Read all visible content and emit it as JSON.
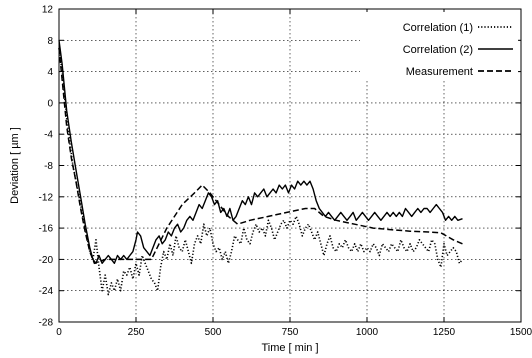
{
  "chart_data": {
    "type": "line",
    "title": "",
    "xlabel": "Time  [ min ]",
    "ylabel": "Deviation  [ µm ]",
    "xlim": [
      0,
      1500
    ],
    "ylim": [
      -28,
      12
    ],
    "x_ticks": [
      0,
      250,
      500,
      750,
      1000,
      1250,
      1500
    ],
    "y_ticks": [
      12,
      8,
      4,
      0,
      -4,
      -8,
      -12,
      -16,
      -20,
      -24,
      -28
    ],
    "grid": true,
    "legend_position": "top-right",
    "series": [
      {
        "name": "Correlation (1)",
        "style": "dotted",
        "color": "#000000",
        "points": [
          [
            0,
            7
          ],
          [
            10,
            4
          ],
          [
            25,
            -2
          ],
          [
            45,
            -8
          ],
          [
            60,
            -11
          ],
          [
            75,
            -14
          ],
          [
            90,
            -17
          ],
          [
            100,
            -19
          ],
          [
            110,
            -20
          ],
          [
            120,
            -17.5
          ],
          [
            130,
            -21
          ],
          [
            140,
            -24
          ],
          [
            150,
            -22
          ],
          [
            160,
            -24.5
          ],
          [
            170,
            -23
          ],
          [
            180,
            -24
          ],
          [
            190,
            -22.5
          ],
          [
            200,
            -24
          ],
          [
            210,
            -21.5
          ],
          [
            220,
            -22
          ],
          [
            230,
            -21
          ],
          [
            240,
            -22.5
          ],
          [
            250,
            -20.5
          ],
          [
            260,
            -22
          ],
          [
            270,
            -19.5
          ],
          [
            280,
            -20.5
          ],
          [
            290,
            -21.5
          ],
          [
            300,
            -22.5
          ],
          [
            310,
            -23
          ],
          [
            320,
            -24
          ],
          [
            330,
            -21
          ],
          [
            340,
            -19
          ],
          [
            350,
            -20
          ],
          [
            360,
            -18
          ],
          [
            370,
            -19.5
          ],
          [
            380,
            -17
          ],
          [
            390,
            -18.5
          ],
          [
            400,
            -19
          ],
          [
            410,
            -17.5
          ],
          [
            420,
            -19
          ],
          [
            430,
            -20.5
          ],
          [
            440,
            -18
          ],
          [
            450,
            -17
          ],
          [
            460,
            -18
          ],
          [
            470,
            -15.5
          ],
          [
            480,
            -17
          ],
          [
            490,
            -16
          ],
          [
            500,
            -18
          ],
          [
            510,
            -19
          ],
          [
            520,
            -18.5
          ],
          [
            530,
            -20
          ],
          [
            540,
            -19
          ],
          [
            550,
            -20.5
          ],
          [
            560,
            -19
          ],
          [
            570,
            -17
          ],
          [
            580,
            -17.5
          ],
          [
            590,
            -18
          ],
          [
            600,
            -16
          ],
          [
            610,
            -17.5
          ],
          [
            620,
            -18
          ],
          [
            630,
            -16.5
          ],
          [
            640,
            -15.5
          ],
          [
            650,
            -16.5
          ],
          [
            660,
            -16
          ],
          [
            670,
            -17
          ],
          [
            680,
            -15
          ],
          [
            690,
            -16
          ],
          [
            700,
            -17.5
          ],
          [
            710,
            -16.5
          ],
          [
            720,
            -15.5
          ],
          [
            730,
            -15
          ],
          [
            740,
            -16
          ],
          [
            750,
            -15
          ],
          [
            760,
            -15.5
          ],
          [
            770,
            -14.5
          ],
          [
            780,
            -15.5
          ],
          [
            790,
            -17
          ],
          [
            800,
            -16
          ],
          [
            810,
            -15.5
          ],
          [
            820,
            -16.5
          ],
          [
            830,
            -17.5
          ],
          [
            840,
            -16.5
          ],
          [
            850,
            -18
          ],
          [
            860,
            -19.5
          ],
          [
            870,
            -18
          ],
          [
            880,
            -17
          ],
          [
            890,
            -18.5
          ],
          [
            900,
            -19
          ],
          [
            910,
            -18
          ],
          [
            920,
            -18.5
          ],
          [
            930,
            -17.5
          ],
          [
            940,
            -18.5
          ],
          [
            950,
            -19
          ],
          [
            960,
            -18
          ],
          [
            970,
            -19
          ],
          [
            980,
            -18
          ],
          [
            990,
            -19
          ],
          [
            1000,
            -18.5
          ],
          [
            1010,
            -19
          ],
          [
            1020,
            -18
          ],
          [
            1030,
            -18.5
          ],
          [
            1040,
            -19.5
          ],
          [
            1050,
            -18
          ],
          [
            1060,
            -18.5
          ],
          [
            1070,
            -19
          ],
          [
            1080,
            -18
          ],
          [
            1090,
            -18.5
          ],
          [
            1100,
            -19
          ],
          [
            1110,
            -17.5
          ],
          [
            1120,
            -18.5
          ],
          [
            1130,
            -19
          ],
          [
            1140,
            -18
          ],
          [
            1150,
            -19
          ],
          [
            1160,
            -18.5
          ],
          [
            1170,
            -17.5
          ],
          [
            1180,
            -18
          ],
          [
            1190,
            -18.5
          ],
          [
            1200,
            -19
          ],
          [
            1210,
            -17.5
          ],
          [
            1220,
            -18
          ],
          [
            1230,
            -20
          ],
          [
            1240,
            -21
          ],
          [
            1250,
            -18
          ],
          [
            1260,
            -19.5
          ],
          [
            1270,
            -19
          ],
          [
            1280,
            -18.5
          ],
          [
            1290,
            -19
          ],
          [
            1300,
            -20.5
          ],
          [
            1310,
            -20
          ]
        ]
      },
      {
        "name": "Correlation (2)",
        "style": "solid",
        "color": "#000000",
        "points": [
          [
            0,
            8
          ],
          [
            10,
            5
          ],
          [
            25,
            -1
          ],
          [
            40,
            -5
          ],
          [
            55,
            -8.5
          ],
          [
            70,
            -12
          ],
          [
            85,
            -15.5
          ],
          [
            100,
            -18.5
          ],
          [
            110,
            -20
          ],
          [
            120,
            -20.5
          ],
          [
            130,
            -19.5
          ],
          [
            140,
            -20.5
          ],
          [
            150,
            -20
          ],
          [
            160,
            -19.5
          ],
          [
            170,
            -20
          ],
          [
            180,
            -20.5
          ],
          [
            190,
            -19.5
          ],
          [
            200,
            -20
          ],
          [
            210,
            -19.5
          ],
          [
            220,
            -20
          ],
          [
            230,
            -19.5
          ],
          [
            240,
            -19
          ],
          [
            250,
            -17.5
          ],
          [
            255,
            -16.5
          ],
          [
            265,
            -17
          ],
          [
            275,
            -18.5
          ],
          [
            285,
            -19
          ],
          [
            295,
            -19.5
          ],
          [
            305,
            -18.5
          ],
          [
            315,
            -17.5
          ],
          [
            325,
            -17
          ],
          [
            335,
            -18
          ],
          [
            345,
            -17.5
          ],
          [
            355,
            -16.5
          ],
          [
            365,
            -17
          ],
          [
            375,
            -16
          ],
          [
            385,
            -15.5
          ],
          [
            395,
            -16.5
          ],
          [
            405,
            -16
          ],
          [
            415,
            -15
          ],
          [
            425,
            -14.5
          ],
          [
            435,
            -15
          ],
          [
            445,
            -14
          ],
          [
            455,
            -13
          ],
          [
            465,
            -13.5
          ],
          [
            475,
            -12.5
          ],
          [
            485,
            -11.5
          ],
          [
            495,
            -12
          ],
          [
            505,
            -13
          ],
          [
            515,
            -12.5
          ],
          [
            525,
            -14
          ],
          [
            535,
            -13.5
          ],
          [
            545,
            -14.5
          ],
          [
            555,
            -13.5
          ],
          [
            565,
            -15
          ],
          [
            575,
            -14.5
          ],
          [
            585,
            -13.5
          ],
          [
            595,
            -12.5
          ],
          [
            605,
            -13
          ],
          [
            615,
            -12
          ],
          [
            625,
            -13
          ],
          [
            635,
            -11.5
          ],
          [
            645,
            -12
          ],
          [
            655,
            -11.5
          ],
          [
            665,
            -11
          ],
          [
            675,
            -12
          ],
          [
            685,
            -11.5
          ],
          [
            695,
            -11
          ],
          [
            705,
            -11.5
          ],
          [
            715,
            -10.5
          ],
          [
            725,
            -11
          ],
          [
            735,
            -10.5
          ],
          [
            745,
            -11.5
          ],
          [
            755,
            -10.5
          ],
          [
            765,
            -11
          ],
          [
            775,
            -10
          ],
          [
            785,
            -10.5
          ],
          [
            795,
            -10
          ],
          [
            805,
            -10.5
          ],
          [
            815,
            -10
          ],
          [
            825,
            -11
          ],
          [
            835,
            -12.5
          ],
          [
            845,
            -13.5
          ],
          [
            855,
            -14
          ],
          [
            865,
            -14.5
          ],
          [
            875,
            -14
          ],
          [
            885,
            -14.5
          ],
          [
            895,
            -15
          ],
          [
            905,
            -14.5
          ],
          [
            915,
            -14
          ],
          [
            925,
            -14.5
          ],
          [
            935,
            -15
          ],
          [
            945,
            -14.5
          ],
          [
            955,
            -14
          ],
          [
            965,
            -15
          ],
          [
            975,
            -14.5
          ],
          [
            985,
            -14
          ],
          [
            995,
            -14.5
          ],
          [
            1005,
            -15
          ],
          [
            1015,
            -14.5
          ],
          [
            1025,
            -14
          ],
          [
            1035,
            -14.5
          ],
          [
            1045,
            -15
          ],
          [
            1055,
            -14.5
          ],
          [
            1065,
            -14
          ],
          [
            1075,
            -14.5
          ],
          [
            1085,
            -14
          ],
          [
            1095,
            -14.5
          ],
          [
            1105,
            -14
          ],
          [
            1115,
            -14.5
          ],
          [
            1125,
            -13.5
          ],
          [
            1135,
            -14
          ],
          [
            1145,
            -14.5
          ],
          [
            1155,
            -14
          ],
          [
            1165,
            -13.5
          ],
          [
            1175,
            -14
          ],
          [
            1185,
            -13.5
          ],
          [
            1195,
            -13.5
          ],
          [
            1205,
            -14
          ],
          [
            1215,
            -13.5
          ],
          [
            1225,
            -13
          ],
          [
            1235,
            -13.5
          ],
          [
            1245,
            -14
          ],
          [
            1255,
            -15
          ],
          [
            1265,
            -14.5
          ],
          [
            1275,
            -15
          ],
          [
            1285,
            -14.5
          ],
          [
            1295,
            -15
          ],
          [
            1310,
            -14.8
          ]
        ]
      },
      {
        "name": "Measurement",
        "style": "dashed",
        "color": "#000000",
        "points": [
          [
            0,
            7
          ],
          [
            10,
            3
          ],
          [
            25,
            -3
          ],
          [
            40,
            -7
          ],
          [
            55,
            -10
          ],
          [
            70,
            -13.5
          ],
          [
            85,
            -16.5
          ],
          [
            100,
            -19
          ],
          [
            115,
            -20.5
          ],
          [
            150,
            -20
          ],
          [
            200,
            -20
          ],
          [
            250,
            -20
          ],
          [
            300,
            -20
          ],
          [
            350,
            -16
          ],
          [
            400,
            -13
          ],
          [
            440,
            -11.5
          ],
          [
            465,
            -10.5
          ],
          [
            490,
            -11.5
          ],
          [
            520,
            -13
          ],
          [
            550,
            -14.5
          ],
          [
            580,
            -15.5
          ],
          [
            620,
            -15
          ],
          [
            680,
            -14.5
          ],
          [
            740,
            -14
          ],
          [
            800,
            -13.5
          ],
          [
            830,
            -13.5
          ],
          [
            860,
            -14.5
          ],
          [
            900,
            -15
          ],
          [
            960,
            -15.5
          ],
          [
            1020,
            -16
          ],
          [
            1080,
            -16.2
          ],
          [
            1140,
            -16.4
          ],
          [
            1200,
            -16.5
          ],
          [
            1240,
            -16.6
          ],
          [
            1280,
            -17.5
          ],
          [
            1310,
            -18
          ]
        ]
      }
    ]
  }
}
